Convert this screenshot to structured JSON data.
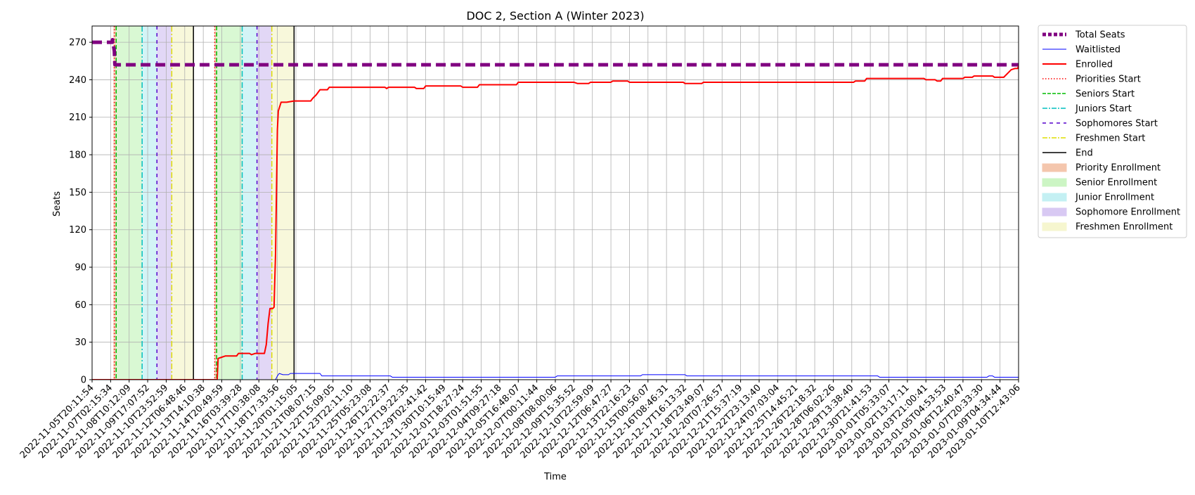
{
  "chart_data": {
    "type": "line",
    "title": "DOC 2, Section A (Winter 2023)",
    "xlabel": "Time",
    "ylabel": "Seats",
    "ylim": [
      0,
      283
    ],
    "yticks": [
      0,
      30,
      60,
      90,
      120,
      150,
      180,
      210,
      240,
      270
    ],
    "grid": true,
    "legend_position": "outside-top-right",
    "xtick_labels": [
      "2022-11-05T20:11:54",
      "2022-11-07T02:15:34",
      "2022-11-08T10:12:09",
      "2022-11-09T17:07:52",
      "2022-11-10T23:52:59",
      "2022-11-12T06:48:46",
      "2022-11-13T14:10:38",
      "2022-11-14T20:49:59",
      "2022-11-16T03:39:28",
      "2022-11-17T10:38:08",
      "2022-11-18T17:33:56",
      "2022-11-20T01:15:05",
      "2022-11-21T08:07:15",
      "2022-11-22T15:09:05",
      "2022-11-23T22:11:10",
      "2022-11-25T05:23:08",
      "2022-11-26T12:22:37",
      "2022-11-27T19:22:35",
      "2022-11-29T02:41:42",
      "2022-11-30T10:15:49",
      "2022-12-01T18:27:24",
      "2022-12-03T01:51:55",
      "2022-12-04T09:27:18",
      "2022-12-05T16:48:07",
      "2022-12-07T00:11:44",
      "2022-12-08T08:00:06",
      "2022-12-09T15:35:52",
      "2022-12-10T22:59:09",
      "2022-12-12T06:47:27",
      "2022-12-13T22:16:23",
      "2022-12-15T00:56:07",
      "2022-12-16T08:46:31",
      "2022-12-17T16:13:32",
      "2022-12-18T23:49:07",
      "2022-12-20T07:26:57",
      "2022-12-21T15:37:19",
      "2022-12-22T23:13:40",
      "2022-12-24T07:03:04",
      "2022-12-25T14:45:21",
      "2022-12-26T22:18:32",
      "2022-12-28T06:02:26",
      "2022-12-29T13:38:40",
      "2022-12-30T21:41:53",
      "2023-01-01T05:33:07",
      "2023-01-02T13:17:11",
      "2023-01-03T21:00:41",
      "2023-01-05T04:53:53",
      "2023-01-06T12:40:47",
      "2023-01-07T20:33:30",
      "2023-01-09T04:34:44",
      "2023-01-10T12:43:06"
    ],
    "x_range_index": [
      0,
      50
    ],
    "regions": [
      {
        "name": "Priority Enrollment",
        "start": 1.15,
        "end": 1.3,
        "color": "#f4c6ad"
      },
      {
        "name": "Senior Enrollment",
        "start": 1.3,
        "end": 2.7,
        "color": "#ccf5c4"
      },
      {
        "name": "Junior Enrollment",
        "start": 2.7,
        "end": 3.5,
        "color": "#c4f0f3"
      },
      {
        "name": "Sophomore Enrollment",
        "start": 3.5,
        "end": 4.3,
        "color": "#d8c9f3"
      },
      {
        "name": "Freshmen Enrollment",
        "start": 4.3,
        "end": 5.45,
        "color": "#f6f6cf"
      },
      {
        "name": "Priority Enrollment",
        "start": 6.6,
        "end": 6.7,
        "color": "#f4c6ad"
      },
      {
        "name": "Senior Enrollment",
        "start": 6.7,
        "end": 8.1,
        "color": "#ccf5c4"
      },
      {
        "name": "Junior Enrollment",
        "start": 8.1,
        "end": 8.9,
        "color": "#c4f0f3"
      },
      {
        "name": "Sophomore Enrollment",
        "start": 8.9,
        "end": 9.7,
        "color": "#d8c9f3"
      },
      {
        "name": "Freshmen Enrollment",
        "start": 9.7,
        "end": 10.9,
        "color": "#f6f6cf"
      }
    ],
    "vlines": [
      {
        "name": "Priorities Start",
        "x": [
          1.2,
          6.62
        ],
        "color": "#ff0000",
        "dash": "1.5,3",
        "width": 1.5
      },
      {
        "name": "Seniors Start",
        "x": [
          1.3,
          6.72
        ],
        "color": "#00bb00",
        "dash": "6,3",
        "width": 1.5
      },
      {
        "name": "Juniors Start",
        "x": [
          2.7,
          8.1
        ],
        "color": "#00bfbf",
        "dash": "8,3,2,3",
        "width": 1.5
      },
      {
        "name": "Sophomores Start",
        "x": [
          3.5,
          8.9
        ],
        "color": "#5500cc",
        "dash": "5,5",
        "width": 1.5
      },
      {
        "name": "Freshmen Start",
        "x": [
          4.3,
          9.7
        ],
        "color": "#dddd00",
        "dash": "8,3,2,3",
        "width": 1.5
      },
      {
        "name": "End",
        "x": [
          5.47,
          10.9
        ],
        "color": "#000000",
        "dash": "",
        "width": 1.5
      }
    ],
    "series": [
      {
        "name": "Total Seats",
        "color": "#800080",
        "width": 5,
        "dash": "14,7",
        "points": [
          [
            0,
            270
          ],
          [
            1.1,
            270
          ],
          [
            1.1,
            272
          ],
          [
            1.2,
            263
          ],
          [
            1.23,
            252
          ],
          [
            50,
            252
          ]
        ]
      },
      {
        "name": "Waitlisted",
        "color": "#0000ff",
        "width": 1,
        "dash": "",
        "points": [
          [
            0,
            0
          ],
          [
            9.9,
            0
          ],
          [
            10.0,
            3
          ],
          [
            10.1,
            5
          ],
          [
            10.3,
            4
          ],
          [
            10.6,
            4
          ],
          [
            10.7,
            5
          ],
          [
            12.3,
            5
          ],
          [
            12.4,
            3
          ],
          [
            16.1,
            3
          ],
          [
            16.2,
            2
          ],
          [
            25.0,
            2
          ],
          [
            25.1,
            3
          ],
          [
            29.6,
            3
          ],
          [
            29.7,
            4
          ],
          [
            32.0,
            4
          ],
          [
            32.1,
            3
          ],
          [
            42.4,
            3
          ],
          [
            42.5,
            2
          ],
          [
            48.3,
            2
          ],
          [
            48.4,
            3
          ],
          [
            48.6,
            3
          ],
          [
            48.7,
            2
          ],
          [
            50,
            2
          ]
        ]
      },
      {
        "name": "Enrolled",
        "color": "#ff0000",
        "width": 2,
        "dash": "",
        "points": [
          [
            0,
            0
          ],
          [
            6.75,
            0
          ],
          [
            6.8,
            17
          ],
          [
            7.0,
            18
          ],
          [
            7.2,
            19
          ],
          [
            7.8,
            19
          ],
          [
            7.9,
            21
          ],
          [
            8.5,
            21
          ],
          [
            8.6,
            20
          ],
          [
            8.8,
            21
          ],
          [
            9.3,
            21
          ],
          [
            9.4,
            28
          ],
          [
            9.5,
            45
          ],
          [
            9.6,
            57
          ],
          [
            9.75,
            57
          ],
          [
            9.82,
            58
          ],
          [
            9.85,
            75
          ],
          [
            9.9,
            100
          ],
          [
            9.95,
            150
          ],
          [
            10.0,
            200
          ],
          [
            10.05,
            215
          ],
          [
            10.2,
            222
          ],
          [
            10.5,
            222
          ],
          [
            10.9,
            223
          ],
          [
            11.8,
            223
          ],
          [
            11.9,
            225
          ],
          [
            12.1,
            228
          ],
          [
            12.3,
            232
          ],
          [
            12.5,
            232
          ],
          [
            12.7,
            232
          ],
          [
            12.8,
            234
          ],
          [
            15.8,
            234
          ],
          [
            15.9,
            233
          ],
          [
            16.0,
            234
          ],
          [
            17.4,
            234
          ],
          [
            17.5,
            233
          ],
          [
            17.9,
            233
          ],
          [
            18.0,
            235
          ],
          [
            19.9,
            235
          ],
          [
            20.0,
            234
          ],
          [
            20.8,
            234
          ],
          [
            20.9,
            236
          ],
          [
            22.9,
            236
          ],
          [
            23.0,
            238
          ],
          [
            26.0,
            238
          ],
          [
            26.2,
            237
          ],
          [
            26.8,
            237
          ],
          [
            26.9,
            238
          ],
          [
            28.0,
            238
          ],
          [
            28.1,
            239
          ],
          [
            28.9,
            239
          ],
          [
            29.0,
            238
          ],
          [
            31.9,
            238
          ],
          [
            32.0,
            237
          ],
          [
            32.9,
            237
          ],
          [
            33.0,
            238
          ],
          [
            41.1,
            238
          ],
          [
            41.2,
            239
          ],
          [
            41.7,
            239
          ],
          [
            41.8,
            241
          ],
          [
            44.9,
            241
          ],
          [
            45.0,
            240
          ],
          [
            45.5,
            240
          ],
          [
            45.6,
            239
          ],
          [
            45.8,
            239
          ],
          [
            45.9,
            241
          ],
          [
            47.0,
            241
          ],
          [
            47.1,
            242
          ],
          [
            47.5,
            242
          ],
          [
            47.6,
            243
          ],
          [
            48.6,
            243
          ],
          [
            48.7,
            242
          ],
          [
            49.2,
            242
          ],
          [
            49.4,
            245
          ],
          [
            49.6,
            248
          ],
          [
            49.8,
            249
          ],
          [
            49.95,
            249
          ],
          [
            50,
            251
          ]
        ]
      }
    ],
    "legend": [
      {
        "label": "Total Seats",
        "kind": "line",
        "color": "#800080",
        "dash": "5,3",
        "width": 5
      },
      {
        "label": "Waitlisted",
        "kind": "line",
        "color": "#0000ff",
        "dash": "",
        "width": 1
      },
      {
        "label": "Enrolled",
        "kind": "line",
        "color": "#ff0000",
        "dash": "",
        "width": 2
      },
      {
        "label": "Priorities Start",
        "kind": "line",
        "color": "#ff0000",
        "dash": "1.5,2.5",
        "width": 1.5
      },
      {
        "label": "Seniors Start",
        "kind": "line",
        "color": "#00bb00",
        "dash": "5,2",
        "width": 1.5
      },
      {
        "label": "Juniors Start",
        "kind": "line",
        "color": "#00bfbf",
        "dash": "7,2,2,2",
        "width": 1.5
      },
      {
        "label": "Sophomores Start",
        "kind": "line",
        "color": "#5500cc",
        "dash": "5,5",
        "width": 1.5
      },
      {
        "label": "Freshmen Start",
        "kind": "line",
        "color": "#dddd00",
        "dash": "7,2,2,2",
        "width": 1.5
      },
      {
        "label": "End",
        "kind": "line",
        "color": "#000000",
        "dash": "",
        "width": 1.5
      },
      {
        "label": "Priority Enrollment",
        "kind": "patch",
        "color": "#f4c6ad"
      },
      {
        "label": "Senior Enrollment",
        "kind": "patch",
        "color": "#ccf5c4"
      },
      {
        "label": "Junior Enrollment",
        "kind": "patch",
        "color": "#c4f0f3"
      },
      {
        "label": "Sophomore Enrollment",
        "kind": "patch",
        "color": "#d8c9f3"
      },
      {
        "label": "Freshmen Enrollment",
        "kind": "patch",
        "color": "#f6f6cf"
      }
    ]
  }
}
